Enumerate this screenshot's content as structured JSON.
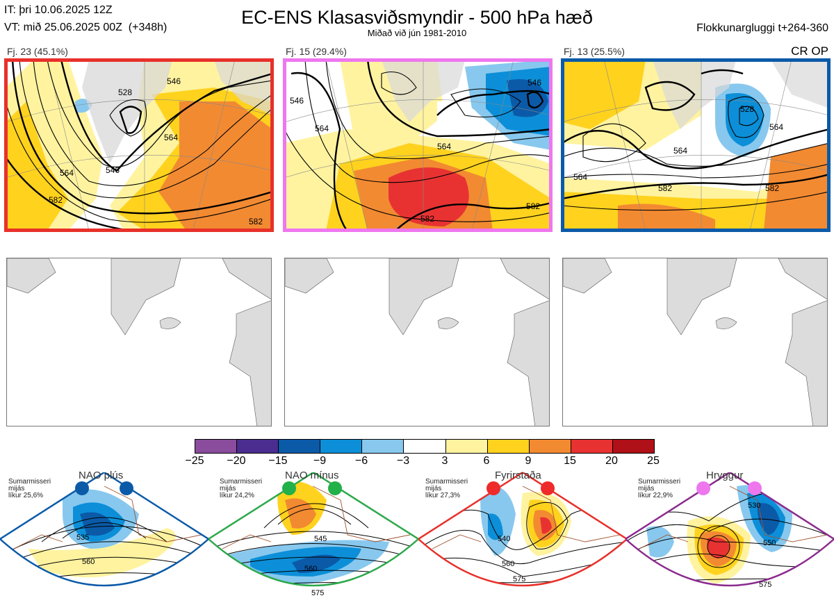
{
  "header": {
    "it_line": "IT: þri 10.06.2025 12Z",
    "vt_line": "VT: mið 25.06.2025 00Z  (+348h)",
    "title": "EC-ENS Klasasviðsmyndir - 500 hPa hæð",
    "subtitle": "Miðað við jún 1981-2010",
    "window": "Flokkunargluggi t+264-360",
    "regime_code": "CR OP"
  },
  "clusters": [
    {
      "label": "Fj. 23 (45.1%)",
      "frame_color": "#e8302a",
      "contours": [
        {
          "text": "528"
        },
        {
          "text": "546"
        },
        {
          "text": "546"
        },
        {
          "text": "564"
        },
        {
          "text": "564"
        },
        {
          "text": "582"
        },
        {
          "text": "582"
        }
      ]
    },
    {
      "label": "Fj. 15 (29.4%)",
      "frame_color": "#ee77ee",
      "contours": [
        {
          "text": "546"
        },
        {
          "text": "546"
        },
        {
          "text": "564"
        },
        {
          "text": "564"
        },
        {
          "text": "582"
        },
        {
          "text": "582"
        }
      ]
    },
    {
      "label": "Fj. 13 (25.5%)",
      "frame_color": "#0b5aa8",
      "contours": [
        {
          "text": "528"
        },
        {
          "text": "564"
        },
        {
          "text": "564"
        },
        {
          "text": "582"
        },
        {
          "text": "564"
        },
        {
          "text": "582"
        }
      ]
    }
  ],
  "colorbar": {
    "ticks": [
      "−25",
      "−20",
      "−15",
      "−9",
      "−6",
      "−3",
      "3",
      "6",
      "9",
      "15",
      "20",
      "25"
    ],
    "colors": [
      "#8a4c9c",
      "#4b2d8f",
      "#0b5aa8",
      "#0c8fd8",
      "#88c8ee",
      "#ffffff",
      "#fff3a0",
      "#ffd21e",
      "#f28a32",
      "#e83232",
      "#b01018"
    ]
  },
  "regimes": [
    {
      "title": "NAO plús",
      "stat": "Sumarmisseri\nmijás\nlíkur 25,6%",
      "frame_color": "#0b5aa8",
      "dot_color": "#0b5aa8",
      "contour_labels": [
        "535",
        "560"
      ]
    },
    {
      "title": "NAO mínus",
      "stat": "Sumarmisseri\nmijás\nlíkur 24,2%",
      "frame_color": "#2ca84a",
      "dot_color": "#22b04a",
      "contour_labels": [
        "545",
        "560",
        "575"
      ]
    },
    {
      "title": "Fyrirstaða",
      "stat": "Sumarmisseri\nmijás\nlíkur 27,3%",
      "frame_color": "#e8302a",
      "dot_color": "#ee2a2a",
      "contour_labels": [
        "540",
        "560",
        "575"
      ]
    },
    {
      "title": "Hryggur",
      "stat": "Sumarmisseri\nmijás\nlíkur 22,9%",
      "frame_color": "#8b2a8f",
      "dot_color": "#ee77ee",
      "contour_labels": [
        "530",
        "550",
        "575"
      ]
    }
  ]
}
